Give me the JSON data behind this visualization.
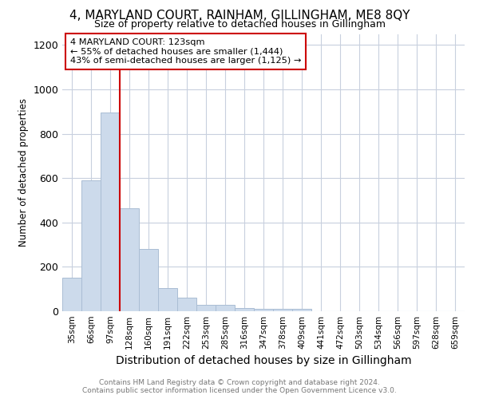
{
  "title_line1": "4, MARYLAND COURT, RAINHAM, GILLINGHAM, ME8 8QY",
  "title_line2": "Size of property relative to detached houses in Gillingham",
  "xlabel": "Distribution of detached houses by size in Gillingham",
  "ylabel": "Number of detached properties",
  "annotation_line1": "4 MARYLAND COURT: 123sqm",
  "annotation_line2": "← 55% of detached houses are smaller (1,444)",
  "annotation_line3": "43% of semi-detached houses are larger (1,125) →",
  "bins": [
    "35sqm",
    "66sqm",
    "97sqm",
    "128sqm",
    "160sqm",
    "191sqm",
    "222sqm",
    "253sqm",
    "285sqm",
    "316sqm",
    "347sqm",
    "378sqm",
    "409sqm",
    "441sqm",
    "472sqm",
    "503sqm",
    "534sqm",
    "566sqm",
    "597sqm",
    "628sqm",
    "659sqm"
  ],
  "values": [
    150,
    590,
    895,
    465,
    280,
    105,
    60,
    28,
    28,
    15,
    10,
    10,
    10,
    0,
    0,
    0,
    0,
    0,
    0,
    0,
    0
  ],
  "bar_color": "#ccdaeb",
  "bar_edge_color": "#aabdd4",
  "grid_color": "#c8d0de",
  "vline_color": "#cc0000",
  "vline_linewidth": 1.5,
  "annotation_box_color": "white",
  "annotation_box_edge": "#cc0000",
  "ylim": [
    0,
    1250
  ],
  "yticks": [
    0,
    200,
    400,
    600,
    800,
    1000,
    1200
  ],
  "footnote_line1": "Contains HM Land Registry data © Crown copyright and database right 2024.",
  "footnote_line2": "Contains public sector information licensed under the Open Government Licence v3.0.",
  "bg_color": "white",
  "vline_bin_index": 3
}
